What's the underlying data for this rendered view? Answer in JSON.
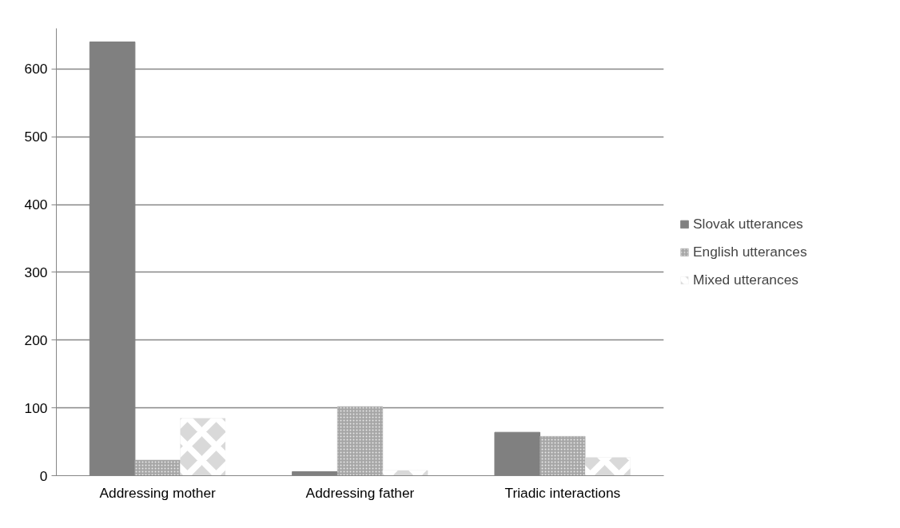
{
  "chart_data": {
    "type": "bar",
    "categories": [
      "Addressing mother",
      "Addressing father",
      "Triadic interactions"
    ],
    "series": [
      {
        "name": "Slovak utterances",
        "color": "#808080",
        "values": [
          640,
          6,
          64
        ]
      },
      {
        "name": "English utterances",
        "color": "#a6a6a6",
        "values": [
          23,
          102,
          58
        ]
      },
      {
        "name": "Mixed utterances",
        "color": "#d9d9d9",
        "values": [
          85,
          8,
          27
        ]
      }
    ],
    "ylim": [
      0,
      660
    ],
    "yticks": [
      0,
      100,
      200,
      300,
      400,
      500,
      600
    ],
    "grid": "y",
    "legend": "right"
  }
}
